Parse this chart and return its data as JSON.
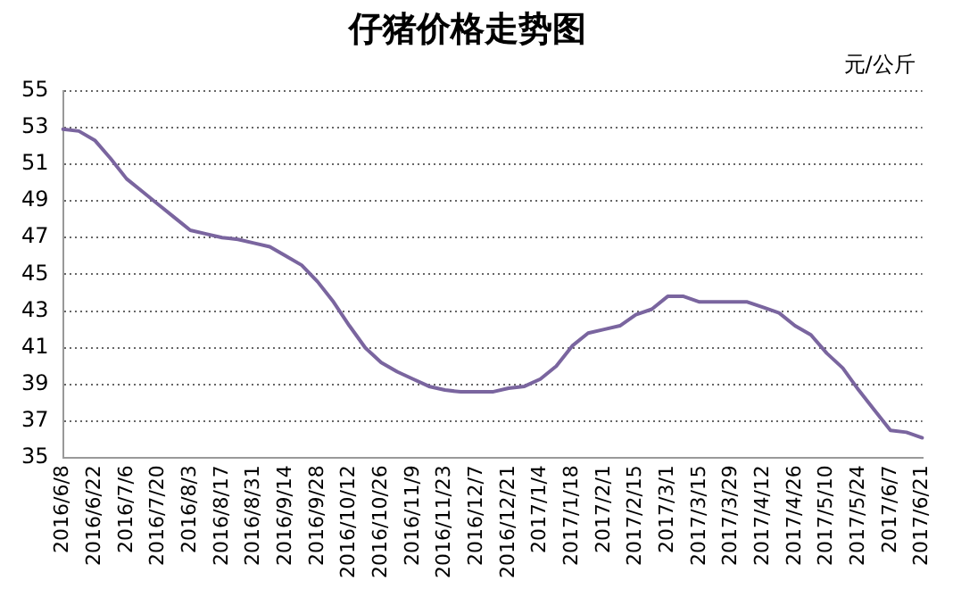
{
  "chart_data": {
    "type": "line",
    "title": "仔猪价格走势图",
    "annotations": [
      "元/公斤"
    ],
    "categories": [
      "2016/6/8",
      null,
      "2016/6/22",
      null,
      "2016/7/6",
      null,
      "2016/7/20",
      null,
      "2016/8/3",
      null,
      "2016/8/17",
      null,
      "2016/8/31",
      null,
      "2016/9/14",
      null,
      "2016/9/28",
      null,
      "2016/10/12",
      null,
      "2016/10/26",
      null,
      "2016/11/9",
      null,
      "2016/11/23",
      null,
      "2016/12/7",
      null,
      "2016/12/21",
      null,
      "2017/1/4",
      null,
      "2017/1/18",
      null,
      "2017/2/1",
      null,
      "2017/2/15",
      null,
      "2017/3/1",
      null,
      "2017/3/15",
      null,
      "2017/3/29",
      null,
      "2017/4/12",
      null,
      "2017/4/26",
      null,
      "2017/5/10",
      null,
      "2017/5/24",
      null,
      "2017/6/7",
      null,
      "2017/6/21"
    ],
    "series": [
      {
        "color": "#7a659f",
        "values": [
          52.9,
          52.8,
          52.3,
          51.3,
          50.2,
          49.5,
          48.8,
          48.1,
          47.4,
          47.2,
          47.0,
          46.9,
          46.7,
          46.5,
          46.0,
          45.5,
          44.6,
          43.5,
          42.2,
          41.0,
          40.2,
          39.7,
          39.3,
          38.9,
          38.7,
          38.6,
          38.6,
          38.6,
          38.8,
          38.9,
          39.3,
          40.0,
          41.1,
          41.8,
          42.0,
          42.2,
          42.8,
          43.1,
          43.8,
          43.8,
          43.5,
          43.5,
          43.5,
          43.5,
          43.2,
          42.9,
          42.2,
          41.7,
          40.7,
          39.9,
          38.7,
          37.6,
          36.5,
          36.4,
          36.1
        ]
      }
    ],
    "ylim": [
      35,
      55
    ],
    "yticks": [
      35,
      37,
      39,
      41,
      43,
      45,
      47,
      49,
      51,
      53,
      55
    ],
    "grid": "y",
    "legend": false,
    "marker": "none",
    "line_style": "solid"
  }
}
